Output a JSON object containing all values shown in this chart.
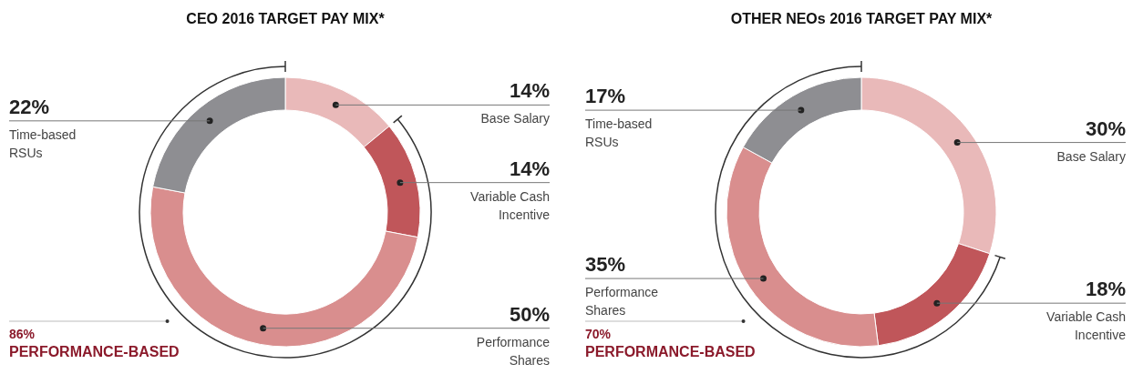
{
  "chart_data": [
    {
      "type": "donut",
      "title": "CEO 2016 TARGET PAY MIX*",
      "categories": [
        "Base Salary",
        "Variable Cash Incentive",
        "Performance Shares",
        "Time-based RSUs"
      ],
      "values": [
        14,
        14,
        50,
        22
      ],
      "value_labels": [
        "14%",
        "14%",
        "50%",
        "22%"
      ],
      "colors": [
        "#e9b9b9",
        "#c0565a",
        "#d98e8e",
        "#8e8e92"
      ],
      "annotations": [
        "86%",
        "PERFORMANCE-BASED"
      ]
    },
    {
      "type": "donut",
      "title": "OTHER NEOs 2016 TARGET PAY MIX*",
      "categories": [
        "Base Salary",
        "Variable Cash Incentive",
        "Performance Shares",
        "Time-based RSUs"
      ],
      "values": [
        30,
        18,
        35,
        17
      ],
      "value_labels": [
        "30%",
        "18%",
        "35%",
        "17%"
      ],
      "colors": [
        "#e9b9b9",
        "#c0565a",
        "#d98e8e",
        "#8e8e92"
      ],
      "annotations": [
        "70%",
        "PERFORMANCE-BASED"
      ]
    }
  ]
}
